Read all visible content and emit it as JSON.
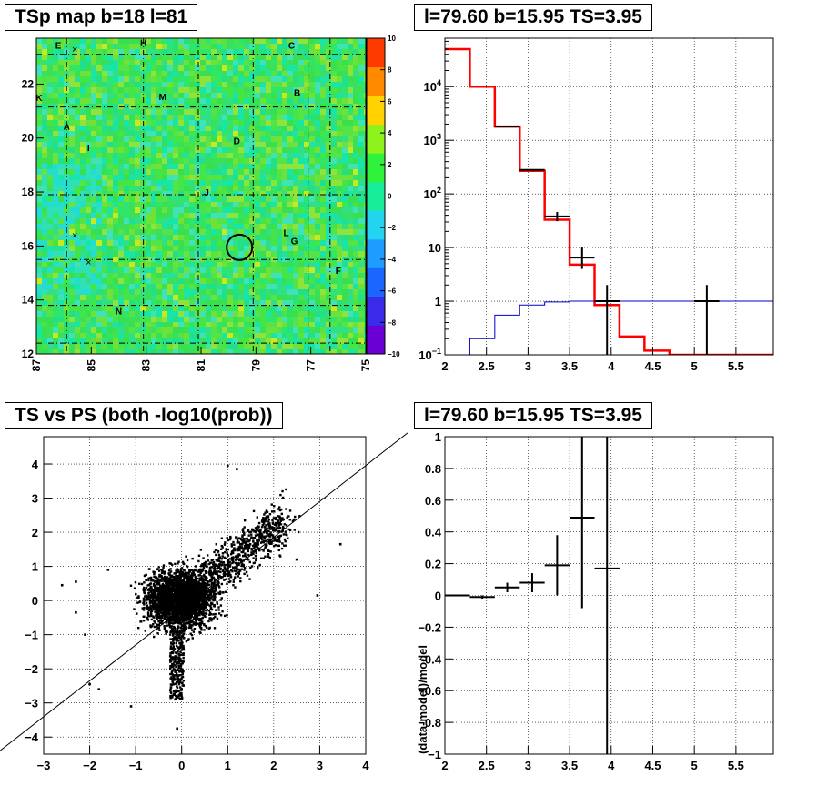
{
  "panels": {
    "map": {
      "title": "TSp map b=18 l=81"
    },
    "spectrum": {
      "title": "l=79.60 b=15.95 TS=3.95"
    },
    "scatter": {
      "title": "TS vs PS (both -log10(prob))"
    },
    "residual": {
      "title": "l=79.60 b=15.95 TS=3.95"
    }
  },
  "chart_data": [
    {
      "type": "heatmap",
      "title": "TSp map b=18 l=81",
      "x_axis": {
        "range": [
          87,
          75
        ],
        "ticks": [
          "87",
          "85",
          "83",
          "81",
          "79",
          "77",
          "75"
        ]
      },
      "y_axis": {
        "range": [
          12,
          23.7
        ],
        "ticks": [
          "12",
          "14",
          "16",
          "18",
          "20",
          "22"
        ]
      },
      "colorbar": {
        "range": [
          -10,
          10
        ],
        "ticks": [
          "10",
          "8",
          "6",
          "4",
          "2",
          "0",
          "-2",
          "-4",
          "-6",
          "-8",
          "-10"
        ],
        "colors": [
          "#6a00d4",
          "#3a2be8",
          "#1a66ff",
          "#1f9cff",
          "#22d4f0",
          "#18ee9a",
          "#2ef23c",
          "#8ef21c",
          "#ffd200",
          "#ff8a00",
          "#ff3a00"
        ]
      },
      "typical_value_color": "#33dd44",
      "source_labels": [
        {
          "text": "E",
          "l": 86.2,
          "b": 23.45
        },
        {
          "text": "H",
          "l": 83.1,
          "b": 23.55
        },
        {
          "text": "C",
          "l": 77.7,
          "b": 23.45
        },
        {
          "text": "K",
          "l": 86.9,
          "b": 21.5
        },
        {
          "text": "B",
          "l": 77.5,
          "b": 21.7
        },
        {
          "text": "M",
          "l": 82.4,
          "b": 21.55
        },
        {
          "text": "A",
          "l": 85.9,
          "b": 20.45
        },
        {
          "text": "I",
          "l": 85.1,
          "b": 19.65
        },
        {
          "text": "D",
          "l": 79.7,
          "b": 19.9
        },
        {
          "text": "J",
          "l": 80.8,
          "b": 18.0
        },
        {
          "text": "L",
          "l": 77.9,
          "b": 16.5
        },
        {
          "text": "G",
          "l": 77.6,
          "b": 16.2
        },
        {
          "text": "F",
          "l": 76.0,
          "b": 15.1
        },
        {
          "text": "N",
          "l": 84.0,
          "b": 13.6
        }
      ],
      "marked_position": {
        "l": 79.6,
        "b": 15.95
      }
    },
    {
      "type": "line",
      "title": "l=79.60 b=15.95 TS=3.95",
      "x_axis": {
        "range": [
          2,
          5.95
        ],
        "ticks": [
          "2",
          "2.5",
          "3",
          "3.5",
          "4",
          "4.5",
          "5",
          "5.5"
        ]
      },
      "y_axis": {
        "log": true,
        "range": [
          0.1,
          80000
        ],
        "ticks": [
          "10^-1",
          "1",
          "10",
          "10^2",
          "10^3",
          "10^4"
        ]
      },
      "grid": true,
      "series": [
        {
          "color": "#ff0000",
          "bins": [
            {
              "x0": 2.0,
              "x1": 2.3,
              "y": 50000
            },
            {
              "x0": 2.3,
              "x1": 2.6,
              "y": 10000
            },
            {
              "x0": 2.6,
              "x1": 2.9,
              "y": 1800
            },
            {
              "x0": 2.9,
              "x1": 3.2,
              "y": 270
            },
            {
              "x0": 3.2,
              "x1": 3.5,
              "y": 33
            },
            {
              "x0": 3.5,
              "x1": 3.8,
              "y": 4.8
            },
            {
              "x0": 3.8,
              "x1": 4.1,
              "y": 0.85
            },
            {
              "x0": 4.1,
              "x1": 4.4,
              "y": 0.22
            },
            {
              "x0": 4.4,
              "x1": 4.7,
              "y": 0.12
            },
            {
              "x0": 4.7,
              "x1": 5.95,
              "y": 0.1
            }
          ]
        },
        {
          "color": "#0000cc",
          "bins": [
            {
              "x0": 2.0,
              "x1": 2.3,
              "y": 0.1
            },
            {
              "x0": 2.3,
              "x1": 2.6,
              "y": 0.2
            },
            {
              "x0": 2.6,
              "x1": 2.9,
              "y": 0.55
            },
            {
              "x0": 2.9,
              "x1": 3.2,
              "y": 0.85
            },
            {
              "x0": 3.2,
              "x1": 3.5,
              "y": 0.97
            },
            {
              "x0": 3.5,
              "x1": 5.95,
              "y": 1.0
            }
          ]
        },
        {
          "color": "#000000",
          "points": [
            {
              "x": 2.75,
              "y": 1800
            },
            {
              "x": 3.05,
              "y": 280,
              "dx": 0.15
            },
            {
              "x": 3.35,
              "y": 38,
              "dx": 0.15,
              "lo": 31,
              "hi": 46
            },
            {
              "x": 3.65,
              "y": 6.5,
              "dx": 0.15,
              "lo": 4.0,
              "hi": 10
            },
            {
              "x": 3.95,
              "y": 1.0,
              "dx": 0.15,
              "lo": 0.1,
              "hi": 2.0
            },
            {
              "x": 5.15,
              "y": 1.0,
              "dx": 0.15,
              "lo": 0.1,
              "hi": 2.0
            }
          ]
        }
      ]
    },
    {
      "type": "scatter",
      "title": "TS vs PS (both -log10(prob))",
      "x_axis": {
        "range": [
          -3,
          4
        ],
        "ticks": [
          "-3",
          "-2",
          "-1",
          "0",
          "1",
          "2",
          "3",
          "4"
        ]
      },
      "y_axis": {
        "range": [
          -4.5,
          4.8
        ],
        "ticks": [
          "-4",
          "-3",
          "-2",
          "-1",
          "0",
          "1",
          "2",
          "3",
          "4"
        ]
      },
      "grid": true,
      "reference_line": {
        "slope": 1,
        "intercept": 0
      },
      "outliers": [
        {
          "x": -2.6,
          "y": 0.45
        },
        {
          "x": -2.3,
          "y": 0.55
        },
        {
          "x": -2.1,
          "y": -1.0
        },
        {
          "x": -2.0,
          "y": -2.45
        },
        {
          "x": -1.8,
          "y": -2.6
        },
        {
          "x": -1.1,
          "y": -3.1
        },
        {
          "x": -0.1,
          "y": -3.75
        },
        {
          "x": 1.0,
          "y": 3.95
        },
        {
          "x": 1.2,
          "y": 3.85
        },
        {
          "x": 3.45,
          "y": 1.65
        },
        {
          "x": 2.95,
          "y": 0.15
        },
        {
          "x": 2.5,
          "y": 1.2
        },
        {
          "x": -2.3,
          "y": -0.35
        },
        {
          "x": -1.6,
          "y": 0.9
        }
      ]
    },
    {
      "type": "scatter",
      "title": "l=79.60 b=15.95 TS=3.95",
      "y_label": "(data-model)/model",
      "x_axis": {
        "range": [
          2,
          5.95
        ],
        "ticks": [
          "2",
          "2.5",
          "3",
          "3.5",
          "4",
          "4.5",
          "5",
          "5.5"
        ]
      },
      "y_axis": {
        "range": [
          -1,
          1
        ],
        "ticks": [
          "-1",
          "-0.8",
          "-0.6",
          "-0.4",
          "-0.2",
          "0",
          "0.2",
          "0.4",
          "0.6",
          "0.8",
          "1"
        ]
      },
      "grid": true,
      "points": [
        {
          "x": 2.15,
          "y": 0.0,
          "dx": 0.15,
          "lo": -0.005,
          "hi": 0.005
        },
        {
          "x": 2.45,
          "y": -0.01,
          "dx": 0.15,
          "lo": -0.02,
          "hi": 0.0
        },
        {
          "x": 2.75,
          "y": 0.05,
          "dx": 0.15,
          "lo": 0.02,
          "hi": 0.08
        },
        {
          "x": 3.05,
          "y": 0.08,
          "dx": 0.15,
          "lo": 0.02,
          "hi": 0.14
        },
        {
          "x": 3.35,
          "y": 0.19,
          "dx": 0.15,
          "lo": 0.0,
          "hi": 0.38
        },
        {
          "x": 3.65,
          "y": 0.49,
          "dx": 0.15,
          "lo": -0.08,
          "hi": 1.0
        },
        {
          "x": 3.95,
          "y": 0.17,
          "dx": 0.15,
          "lo": -1.0,
          "hi": 1.0
        }
      ]
    }
  ]
}
